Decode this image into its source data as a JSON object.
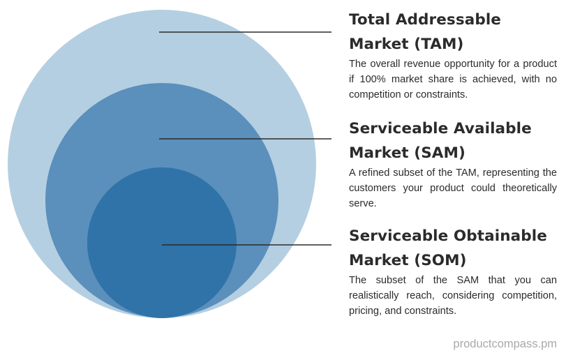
{
  "colors": {
    "tam_fill": "#b4cfe1",
    "sam_fill": "#5b8fbc",
    "som_fill": "#2f73a8",
    "leader_line": "#2b2b2b",
    "text": "#2b2b2b",
    "watermark": "#a9a9a9"
  },
  "tam": {
    "title_line1": "Total Addressable",
    "title_line2": "Market (TAM)",
    "description": "The overall revenue opportunity for a product if 100% market share is achieved, with no competition or constraints."
  },
  "sam": {
    "title_line1": "Serviceable Available",
    "title_line2": "Market (SAM)",
    "description": "A refined subset of the TAM, representing the customers your product could theoretically serve."
  },
  "som": {
    "title_line1": "Serviceable Obtainable",
    "title_line2": "Market (SOM)",
    "description": "The subset of the SAM that you can realistically reach, considering competition, pricing, and constraints."
  },
  "watermark": "productcompass.pm"
}
